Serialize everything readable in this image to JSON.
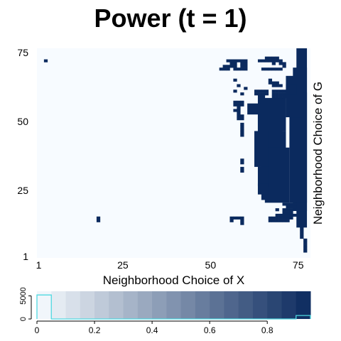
{
  "title": "Power (t = 1)",
  "colors": {
    "low": "#f7fbff",
    "high": "#0b2a5e",
    "histogram_line": "#4fd8e0",
    "background": "#ffffff"
  },
  "chart_data": [
    {
      "type": "heatmap",
      "xlabel": "Neighborhood Choice of X",
      "ylabel": "Neighborhood Choice of G",
      "xlim": [
        1,
        78
      ],
      "ylim": [
        1,
        76
      ],
      "x_ticks": [
        1,
        25,
        50,
        75
      ],
      "y_ticks": [
        1,
        25,
        50,
        75
      ],
      "value_range": [
        0,
        1
      ],
      "description_of_cells": "binary power value per (X, G) neighborhood pair; 1 = dark cells, 0 = light background",
      "high_value_cells": [
        [
          3,
          72
        ],
        [
          18,
          14
        ],
        [
          18,
          15
        ],
        [
          55,
          72
        ],
        [
          56,
          72
        ],
        [
          57,
          72
        ],
        [
          58,
          72
        ],
        [
          59,
          72
        ],
        [
          60,
          72
        ],
        [
          56,
          71
        ],
        [
          57,
          71
        ],
        [
          59,
          71
        ],
        [
          60,
          71
        ],
        [
          54,
          70
        ],
        [
          55,
          70
        ],
        [
          56,
          70
        ],
        [
          57,
          70
        ],
        [
          59,
          70
        ],
        [
          60,
          70
        ],
        [
          53,
          69
        ],
        [
          54,
          69
        ],
        [
          55,
          69
        ],
        [
          57,
          69
        ],
        [
          58,
          69
        ],
        [
          59,
          69
        ],
        [
          60,
          69
        ],
        [
          57,
          65
        ],
        [
          58,
          63
        ],
        [
          60,
          62
        ],
        [
          57,
          61
        ],
        [
          59,
          60
        ],
        [
          57,
          57
        ],
        [
          58,
          57
        ],
        [
          59,
          57
        ],
        [
          57,
          56
        ],
        [
          58,
          56
        ],
        [
          59,
          56
        ],
        [
          58,
          55
        ],
        [
          57,
          54
        ],
        [
          58,
          54
        ],
        [
          58,
          53
        ],
        [
          58,
          52
        ],
        [
          59,
          52
        ],
        [
          58,
          51
        ],
        [
          59,
          51
        ],
        [
          59,
          49
        ],
        [
          59,
          48
        ],
        [
          59,
          47
        ],
        [
          59,
          46
        ],
        [
          59,
          45
        ],
        [
          59,
          36
        ],
        [
          59,
          35
        ],
        [
          59,
          33
        ],
        [
          59,
          32
        ],
        [
          56,
          15
        ],
        [
          57,
          15
        ],
        [
          58,
          15
        ],
        [
          59,
          15
        ],
        [
          56,
          14
        ],
        [
          59,
          14
        ],
        [
          59,
          13
        ],
        [
          65,
          69
        ],
        [
          66,
          69
        ],
        [
          67,
          69
        ],
        [
          68,
          69
        ],
        [
          69,
          69
        ],
        [
          70,
          69
        ],
        [
          64,
          72
        ],
        [
          65,
          72
        ],
        [
          66,
          72
        ],
        [
          67,
          72
        ],
        [
          68,
          72
        ],
        [
          69,
          72
        ],
        [
          70,
          72
        ],
        [
          66,
          73
        ],
        [
          67,
          73
        ],
        [
          68,
          73
        ],
        [
          69,
          73
        ],
        [
          68,
          71
        ],
        [
          70,
          71
        ],
        [
          71,
          71
        ],
        [
          71,
          70
        ],
        [
          67,
          65
        ],
        [
          67,
          64
        ],
        [
          68,
          64
        ],
        [
          69,
          64
        ],
        [
          68,
          63
        ],
        [
          69,
          63
        ],
        [
          70,
          63
        ],
        [
          63,
          61
        ],
        [
          64,
          61
        ],
        [
          65,
          61
        ],
        [
          66,
          61
        ],
        [
          68,
          61
        ],
        [
          69,
          61
        ],
        [
          70,
          61
        ],
        [
          71,
          61
        ],
        [
          63,
          60
        ],
        [
          64,
          60
        ],
        [
          65,
          60
        ],
        [
          66,
          60
        ],
        [
          68,
          60
        ],
        [
          69,
          60
        ],
        [
          70,
          60
        ],
        [
          71,
          60
        ],
        [
          64,
          59
        ],
        [
          65,
          59
        ],
        [
          68,
          59
        ],
        [
          69,
          59
        ],
        [
          70,
          59
        ],
        [
          71,
          59
        ],
        [
          67,
          15
        ],
        [
          68,
          15
        ],
        [
          69,
          15
        ],
        [
          70,
          15
        ],
        [
          71,
          15
        ],
        [
          72,
          15
        ],
        [
          73,
          15
        ],
        [
          67,
          14
        ],
        [
          68,
          14
        ],
        [
          69,
          14
        ],
        [
          70,
          14
        ],
        [
          71,
          14
        ],
        [
          72,
          14
        ],
        [
          69,
          16
        ],
        [
          70,
          16
        ],
        [
          71,
          16
        ],
        [
          72,
          16
        ],
        [
          73,
          16
        ],
        [
          74,
          16
        ],
        [
          69,
          18
        ],
        [
          71,
          18
        ],
        [
          72,
          18
        ],
        [
          73,
          18
        ],
        [
          71,
          17
        ],
        [
          72,
          17
        ],
        [
          73,
          17
        ],
        [
          71,
          20
        ],
        [
          72,
          20
        ],
        [
          73,
          20
        ],
        [
          74,
          20
        ],
        [
          72,
          19
        ],
        [
          73,
          19
        ],
        [
          74,
          19
        ],
        [
          76,
          12
        ],
        [
          76,
          11
        ],
        [
          76,
          10
        ],
        [
          76,
          9
        ],
        [
          76,
          8
        ],
        [
          77,
          7
        ],
        [
          77,
          6
        ],
        [
          77,
          5
        ],
        [
          77,
          4
        ],
        [
          77,
          3
        ]
      ],
      "high_value_rects": [
        {
          "x": [
            75,
            77
          ],
          "y": [
            12,
            76
          ]
        },
        {
          "x": [
            74,
            77
          ],
          "y": [
            18,
            69
          ]
        },
        {
          "x": [
            73,
            77
          ],
          "y": [
            21,
            60
          ]
        },
        {
          "x": [
            72,
            76
          ],
          "y": [
            52,
            66
          ]
        },
        {
          "x": [
            72,
            74
          ],
          "y": [
            60,
            63
          ]
        },
        {
          "x": [
            64,
            70
          ],
          "y": [
            34,
            56
          ]
        },
        {
          "x": [
            65,
            71
          ],
          "y": [
            22,
            46
          ]
        },
        {
          "x": [
            66,
            72
          ],
          "y": [
            21,
            40
          ]
        },
        {
          "x": [
            64,
            71
          ],
          "y": [
            47,
            58
          ]
        },
        {
          "x": [
            61,
            64
          ],
          "y": [
            53,
            56
          ]
        },
        {
          "x": [
            64,
            66
          ],
          "y": [
            27,
            33
          ]
        },
        {
          "x": [
            63,
            66
          ],
          "y": [
            34,
            46
          ]
        },
        {
          "x": [
            64,
            66
          ],
          "y": [
            24,
            27
          ]
        }
      ]
    },
    {
      "type": "bar",
      "xlabel": "",
      "ylabel": "",
      "xlim": [
        0,
        0.95
      ],
      "ylim": [
        0,
        6000
      ],
      "x_ticks": [
        0,
        0.2,
        0.4,
        0.6,
        0.8
      ],
      "y_ticks": [
        0,
        5000
      ],
      "bins": [
        0,
        0.05,
        0.1,
        0.15,
        0.2,
        0.25,
        0.3,
        0.35,
        0.4,
        0.45,
        0.5,
        0.55,
        0.6,
        0.65,
        0.7,
        0.75,
        0.8,
        0.85,
        0.9,
        0.95
      ],
      "counts": [
        5200,
        0,
        0,
        0,
        0,
        0,
        0,
        0,
        0,
        0,
        0,
        0,
        0,
        0,
        0,
        0,
        0,
        0,
        750
      ]
    }
  ]
}
